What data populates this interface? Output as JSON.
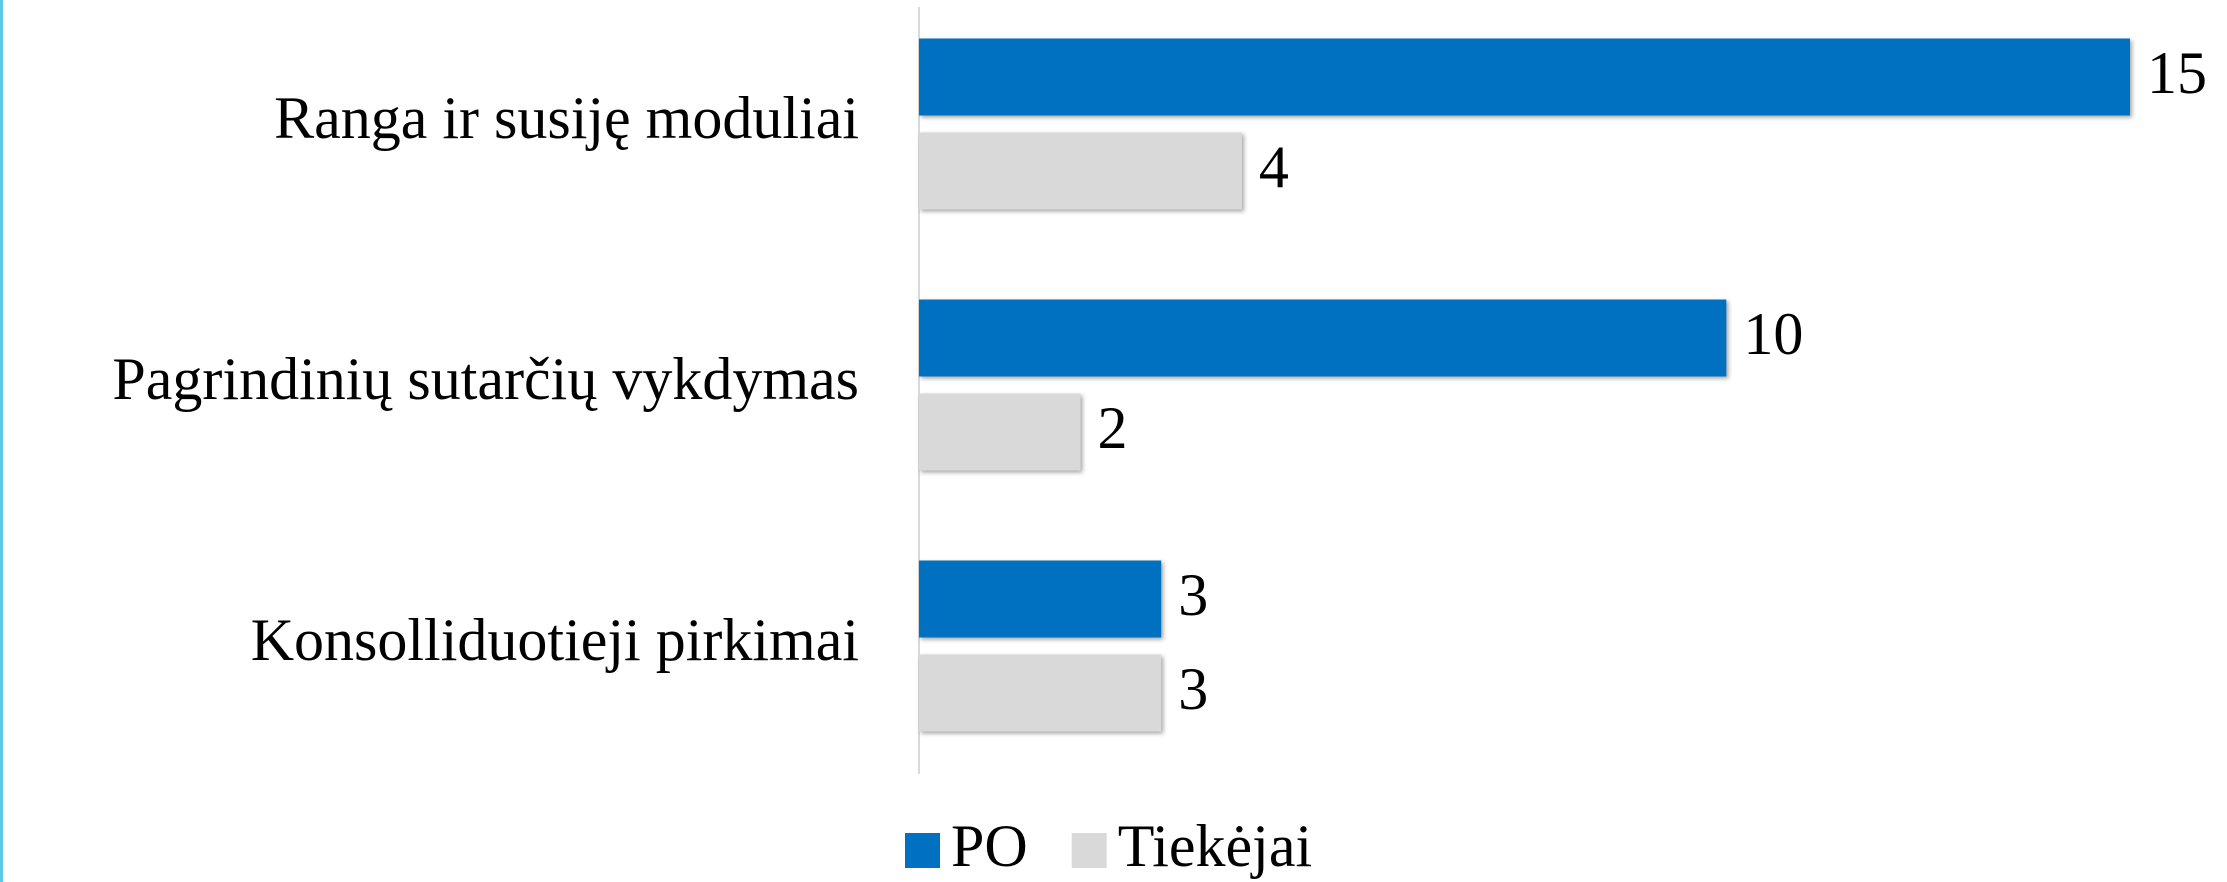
{
  "chart_data": {
    "type": "hbar",
    "categories": [
      "Ranga ir susiję moduliai",
      "Pagrindinių sutarčių vykdymas",
      "Konsolliduotieji pirkimai"
    ],
    "series": [
      {
        "name": "PO",
        "color": "#0070c0",
        "values": [
          15,
          10,
          3
        ]
      },
      {
        "name": "Tiekėjai",
        "color": "#d9d9d9",
        "values": [
          4,
          2,
          3
        ]
      }
    ],
    "xlim": [
      0,
      15
    ],
    "legend": "bottom"
  }
}
